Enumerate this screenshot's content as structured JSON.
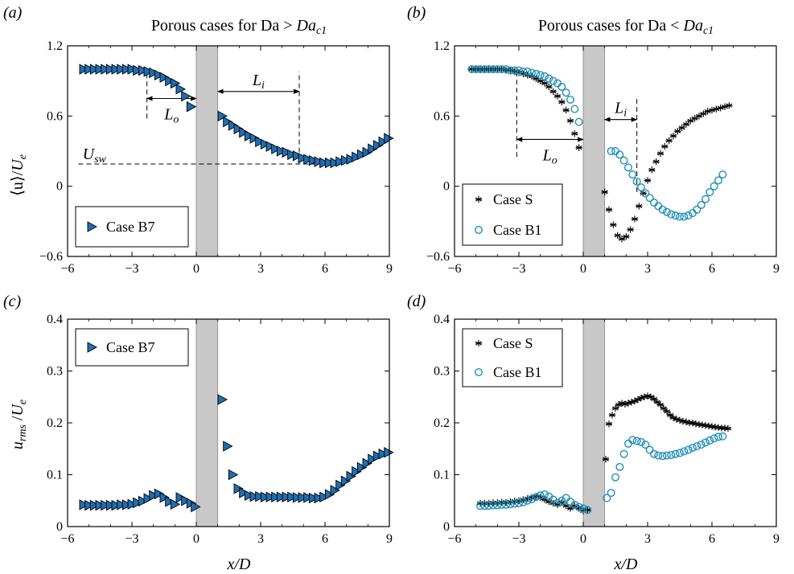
{
  "figure": {
    "ylabel_top": "⟨u⟩/U_e",
    "ylabel_bottom": "u_rms /U_e",
    "xlabel": "x/D"
  },
  "panels": [
    {
      "id": "a",
      "panel_label": "(a)",
      "title": "Porous cases for Da > Da_c1",
      "annotations": [
        "L_o",
        "L_i",
        "U_sw"
      ],
      "legend": [
        "Case B7"
      ]
    },
    {
      "id": "b",
      "panel_label": "(b)",
      "title": "Porous cases for Da < Da_c1",
      "annotations": [
        "L_o",
        "L_i"
      ],
      "legend": [
        "Case S",
        "Case B1"
      ]
    },
    {
      "id": "c",
      "panel_label": "(c)",
      "title": "",
      "legend": [
        "Case B7"
      ]
    },
    {
      "id": "d",
      "panel_label": "(d)",
      "title": "",
      "legend": [
        "Case S",
        "Case B1"
      ]
    }
  ],
  "chart_data": [
    {
      "type": "scatter",
      "panel": "a",
      "xlim": [
        -6,
        9
      ],
      "ylim": [
        -0.6,
        1.2
      ],
      "xticks": [
        "−6",
        "−3",
        "0",
        "3",
        "6",
        "9"
      ],
      "yticks": [
        "−0.6",
        "0",
        "0.6",
        "1.2"
      ],
      "xlabel": "",
      "ylabel": "⟨u⟩/U_e",
      "shaded_band_x": [
        0,
        1
      ],
      "series": [
        {
          "name": "Case B7",
          "marker": "triangle-right",
          "color": "#1f6eb3",
          "x": [
            -5.25,
            -5,
            -4.75,
            -4.5,
            -4.25,
            -4,
            -3.75,
            -3.5,
            -3.25,
            -3,
            -2.75,
            -2.5,
            -2.25,
            -2,
            -1.75,
            -1.5,
            -1.25,
            -1,
            -0.75,
            -0.5,
            -0.25,
            1.2,
            1.45,
            1.7,
            1.95,
            2.2,
            2.45,
            2.7,
            2.95,
            3.2,
            3.45,
            3.7,
            3.95,
            4.2,
            4.45,
            4.7,
            4.95,
            5.2,
            5.45,
            5.7,
            5.95,
            6.2,
            6.45,
            6.7,
            6.95,
            7.2,
            7.45,
            7.7,
            7.95,
            8.2,
            8.45,
            8.7,
            8.95
          ],
          "y": [
            1.0,
            1.0,
            1.0,
            1.0,
            1.0,
            1.0,
            1.0,
            1.0,
            1.0,
            1.0,
            0.99,
            0.99,
            0.98,
            0.97,
            0.95,
            0.93,
            0.9,
            0.88,
            0.83,
            0.77,
            0.68,
            0.6,
            0.55,
            0.52,
            0.49,
            0.46,
            0.43,
            0.41,
            0.38,
            0.36,
            0.34,
            0.32,
            0.3,
            0.29,
            0.27,
            0.26,
            0.24,
            0.23,
            0.22,
            0.21,
            0.2,
            0.2,
            0.2,
            0.21,
            0.22,
            0.23,
            0.25,
            0.27,
            0.29,
            0.32,
            0.35,
            0.38,
            0.41
          ]
        }
      ],
      "lines": [
        {
          "type": "hline",
          "y": 0.19,
          "x": [
            -5.5,
            6.0
          ],
          "dash": true
        },
        {
          "type": "vline",
          "x": -2.3,
          "y": [
            0.58,
            0.98
          ],
          "dash": true
        },
        {
          "type": "vline",
          "x": 4.8,
          "y": [
            0.22,
            0.98
          ],
          "dash": true
        }
      ],
      "arrows": [
        {
          "label": "L_o",
          "x": [
            -2.3,
            0
          ],
          "y": 0.75
        },
        {
          "label": "L_i",
          "x": [
            1,
            4.8
          ],
          "y": 0.81
        }
      ]
    },
    {
      "type": "scatter",
      "panel": "b",
      "xlim": [
        -6,
        9
      ],
      "ylim": [
        -0.6,
        1.2
      ],
      "xticks": [
        "−6",
        "−3",
        "0",
        "3",
        "6",
        "9"
      ],
      "yticks": [
        "−0.6",
        "0",
        "0.6",
        "1.2"
      ],
      "shaded_band_x": [
        0,
        1
      ],
      "series": [
        {
          "name": "Case S",
          "marker": "asterisk",
          "color": "#000000",
          "x": [
            -5.2,
            -5,
            -4.8,
            -4.6,
            -4.4,
            -4.2,
            -4,
            -3.8,
            -3.6,
            -3.4,
            -3.2,
            -3,
            -2.8,
            -2.6,
            -2.4,
            -2.2,
            -2,
            -1.8,
            -1.6,
            -1.4,
            -1.2,
            -1,
            -0.8,
            -0.6,
            -0.4,
            -0.2,
            1.0,
            1.2,
            1.4,
            1.6,
            1.8,
            2.0,
            2.2,
            2.4,
            2.6,
            2.8,
            3.0,
            3.2,
            3.4,
            3.6,
            3.8,
            4.0,
            4.2,
            4.4,
            4.6,
            4.8,
            5.0,
            5.2,
            5.4,
            5.6,
            5.8,
            6.0,
            6.2,
            6.4,
            6.6,
            6.8
          ],
          "y": [
            1.0,
            1.0,
            1.0,
            1.0,
            1.0,
            1.0,
            1.0,
            1.0,
            0.99,
            0.99,
            0.98,
            0.97,
            0.96,
            0.95,
            0.94,
            0.92,
            0.9,
            0.88,
            0.85,
            0.81,
            0.77,
            0.72,
            0.65,
            0.56,
            0.45,
            0.33,
            -0.05,
            -0.2,
            -0.33,
            -0.42,
            -0.45,
            -0.43,
            -0.37,
            -0.28,
            -0.17,
            -0.06,
            0.05,
            0.14,
            0.21,
            0.28,
            0.34,
            0.39,
            0.43,
            0.47,
            0.5,
            0.53,
            0.56,
            0.58,
            0.6,
            0.62,
            0.64,
            0.65,
            0.66,
            0.67,
            0.68,
            0.69
          ]
        },
        {
          "name": "Case B1",
          "marker": "circle-open",
          "color": "#1f8fb8",
          "x": [
            -5.2,
            -5,
            -4.8,
            -4.6,
            -4.4,
            -4.2,
            -4,
            -3.8,
            -3.6,
            -3.4,
            -3.2,
            -3,
            -2.8,
            -2.6,
            -2.4,
            -2.2,
            -2,
            -1.8,
            -1.6,
            -1.4,
            -1.2,
            -1,
            -0.8,
            -0.6,
            -0.4,
            -0.2,
            1.3,
            1.5,
            1.7,
            1.9,
            2.1,
            2.3,
            2.5,
            2.7,
            2.9,
            3.1,
            3.3,
            3.5,
            3.7,
            3.9,
            4.1,
            4.3,
            4.5,
            4.7,
            4.9,
            5.1,
            5.3,
            5.5,
            5.7,
            5.9,
            6.1,
            6.3,
            6.5
          ],
          "y": [
            1.0,
            1.0,
            1.0,
            1.0,
            1.0,
            1.0,
            1.0,
            1.0,
            1.0,
            0.99,
            0.99,
            0.99,
            0.98,
            0.98,
            0.97,
            0.96,
            0.95,
            0.94,
            0.92,
            0.9,
            0.88,
            0.85,
            0.8,
            0.74,
            0.66,
            0.55,
            0.3,
            0.3,
            0.27,
            0.22,
            0.16,
            0.1,
            0.04,
            -0.01,
            -0.06,
            -0.1,
            -0.14,
            -0.17,
            -0.2,
            -0.22,
            -0.24,
            -0.25,
            -0.26,
            -0.26,
            -0.25,
            -0.23,
            -0.2,
            -0.16,
            -0.11,
            -0.05,
            0.0,
            0.05,
            0.1
          ]
        }
      ],
      "lines": [
        {
          "type": "vline",
          "x": -3.1,
          "y": [
            0.25,
            0.98
          ],
          "dash": true
        },
        {
          "type": "vline",
          "x": 2.5,
          "y": [
            -0.05,
            0.76
          ],
          "dash": true
        }
      ],
      "arrows": [
        {
          "label": "L_o",
          "x": [
            -3.1,
            0
          ],
          "y": 0.4
        },
        {
          "label": "L_i",
          "x": [
            1,
            2.5
          ],
          "y": 0.57
        }
      ]
    },
    {
      "type": "scatter",
      "panel": "c",
      "xlim": [
        -6,
        9
      ],
      "ylim": [
        0,
        0.4
      ],
      "xticks": [
        "−6",
        "−3",
        "0",
        "3",
        "6",
        "9"
      ],
      "yticks": [
        "0",
        "0.1",
        "0.2",
        "0.3",
        "0.4"
      ],
      "xlabel": "x/D",
      "ylabel": "u_rms /U_e",
      "shaded_band_x": [
        0,
        1
      ],
      "series": [
        {
          "name": "Case B7",
          "marker": "triangle-right",
          "color": "#1f6eb3",
          "x": [
            -5.25,
            -5,
            -4.75,
            -4.5,
            -4.25,
            -4,
            -3.75,
            -3.5,
            -3.25,
            -3,
            -2.75,
            -2.5,
            -2.25,
            -2,
            -1.75,
            -1.5,
            -1.25,
            -1,
            -0.75,
            -0.5,
            -0.25,
            -0.05,
            1.2,
            1.45,
            1.7,
            1.95,
            2.2,
            2.45,
            2.7,
            2.95,
            3.2,
            3.45,
            3.7,
            3.95,
            4.2,
            4.45,
            4.7,
            4.95,
            5.2,
            5.45,
            5.7,
            5.95,
            6.2,
            6.45,
            6.7,
            6.95,
            7.2,
            7.45,
            7.7,
            7.95,
            8.2,
            8.45,
            8.7,
            8.95
          ],
          "y": [
            0.042,
            0.041,
            0.041,
            0.041,
            0.041,
            0.041,
            0.041,
            0.042,
            0.042,
            0.043,
            0.046,
            0.049,
            0.054,
            0.06,
            0.063,
            0.056,
            0.048,
            0.043,
            0.056,
            0.05,
            0.045,
            0.038,
            0.245,
            0.155,
            0.1,
            0.073,
            0.065,
            0.06,
            0.058,
            0.058,
            0.057,
            0.057,
            0.057,
            0.057,
            0.057,
            0.057,
            0.056,
            0.056,
            0.056,
            0.055,
            0.055,
            0.057,
            0.062,
            0.07,
            0.08,
            0.088,
            0.097,
            0.106,
            0.114,
            0.122,
            0.13,
            0.136,
            0.14,
            0.143
          ]
        }
      ]
    },
    {
      "type": "scatter",
      "panel": "d",
      "xlim": [
        -6,
        9
      ],
      "ylim": [
        0,
        0.4
      ],
      "xticks": [
        "−6",
        "−3",
        "0",
        "3",
        "6",
        "9"
      ],
      "yticks": [
        "0",
        "0.1",
        "0.2",
        "0.3",
        "0.4"
      ],
      "xlabel": "x/D",
      "shaded_band_x": [
        0,
        1
      ],
      "series": [
        {
          "name": "Case S",
          "marker": "asterisk",
          "color": "#000000",
          "x": [
            -4.8,
            -4.6,
            -4.4,
            -4.2,
            -4.0,
            -3.8,
            -3.6,
            -3.4,
            -3.2,
            -3.0,
            -2.8,
            -2.6,
            -2.4,
            -2.2,
            -2.0,
            -1.8,
            -1.6,
            -1.4,
            -1.2,
            -1.0,
            -0.8,
            -0.6,
            -0.4,
            -0.2,
            0.0,
            0.2,
            1.05,
            1.2,
            1.35,
            1.5,
            1.65,
            1.8,
            1.95,
            2.1,
            2.25,
            2.4,
            2.55,
            2.7,
            2.85,
            3.0,
            3.15,
            3.3,
            3.45,
            3.6,
            3.75,
            3.9,
            4.05,
            4.2,
            4.35,
            4.5,
            4.65,
            4.8,
            4.95,
            5.1,
            5.25,
            5.4,
            5.55,
            5.7,
            5.85,
            6.0,
            6.15,
            6.3,
            6.45,
            6.6,
            6.75
          ],
          "y": [
            0.045,
            0.045,
            0.045,
            0.046,
            0.046,
            0.047,
            0.047,
            0.048,
            0.049,
            0.05,
            0.052,
            0.054,
            0.056,
            0.058,
            0.056,
            0.052,
            0.048,
            0.045,
            0.042,
            0.046,
            0.04,
            0.035,
            0.04,
            0.035,
            0.03,
            0.032,
            0.13,
            0.198,
            0.215,
            0.228,
            0.235,
            0.238,
            0.236,
            0.238,
            0.24,
            0.242,
            0.245,
            0.248,
            0.25,
            0.252,
            0.25,
            0.246,
            0.24,
            0.235,
            0.228,
            0.222,
            0.215,
            0.21,
            0.207,
            0.205,
            0.203,
            0.202,
            0.2,
            0.2,
            0.198,
            0.197,
            0.196,
            0.195,
            0.194,
            0.193,
            0.192,
            0.191,
            0.19,
            0.19,
            0.189
          ]
        },
        {
          "name": "Case B1",
          "marker": "circle-open",
          "color": "#1f8fb8",
          "x": [
            -4.8,
            -4.6,
            -4.4,
            -4.2,
            -4.0,
            -3.8,
            -3.6,
            -3.4,
            -3.2,
            -3.0,
            -2.8,
            -2.6,
            -2.4,
            -2.2,
            -2.0,
            -1.8,
            -1.6,
            -1.4,
            -1.2,
            -1.0,
            -0.8,
            -0.6,
            -0.4,
            -0.2,
            0.0,
            0.2,
            1.1,
            1.3,
            1.5,
            1.7,
            1.9,
            2.1,
            2.3,
            2.5,
            2.7,
            2.9,
            3.1,
            3.3,
            3.5,
            3.7,
            3.9,
            4.1,
            4.3,
            4.5,
            4.7,
            4.9,
            5.1,
            5.3,
            5.5,
            5.7,
            5.9,
            6.1,
            6.3,
            6.5
          ],
          "y": [
            0.04,
            0.04,
            0.04,
            0.041,
            0.041,
            0.042,
            0.042,
            0.043,
            0.044,
            0.045,
            0.047,
            0.05,
            0.053,
            0.057,
            0.06,
            0.062,
            0.058,
            0.052,
            0.046,
            0.05,
            0.055,
            0.048,
            0.042,
            0.038,
            0.035,
            0.032,
            0.055,
            0.065,
            0.095,
            0.115,
            0.14,
            0.16,
            0.167,
            0.165,
            0.163,
            0.158,
            0.148,
            0.14,
            0.137,
            0.136,
            0.137,
            0.138,
            0.14,
            0.142,
            0.145,
            0.148,
            0.152,
            0.155,
            0.158,
            0.162,
            0.166,
            0.17,
            0.173,
            0.174
          ]
        }
      ]
    }
  ]
}
